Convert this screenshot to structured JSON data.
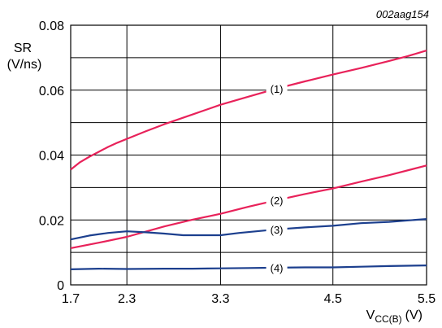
{
  "chart_data": {
    "type": "line",
    "code": "002aag154",
    "ylabel_line1": "SR",
    "ylabel_line2": "(V/ns)",
    "xlabel_main": "V",
    "xlabel_sub": "CC(B)",
    "xlabel_unit": "(V)",
    "xlim": [
      1.7,
      5.5
    ],
    "ylim": [
      0,
      0.08
    ],
    "x_ticks": [
      {
        "value": 1.7,
        "label": "1.7"
      },
      {
        "value": 2.3,
        "label": "2.3"
      },
      {
        "value": 3.3,
        "label": "3.3"
      },
      {
        "value": 4.5,
        "label": "4.5"
      },
      {
        "value": 5.5,
        "label": "5.5"
      }
    ],
    "y_ticks": [
      {
        "value": 0,
        "label": "0"
      },
      {
        "value": 0.02,
        "label": "0.02"
      },
      {
        "value": 0.04,
        "label": "0.04"
      },
      {
        "value": 0.06,
        "label": "0.06"
      },
      {
        "value": 0.08,
        "label": "0.08"
      }
    ],
    "x_grid": [
      2.3,
      3.3,
      4.5
    ],
    "y_grid": [
      0.01,
      0.02,
      0.03,
      0.04,
      0.05,
      0.06,
      0.07
    ],
    "series": [
      {
        "name": "(1)",
        "color": "#e8225a",
        "label_x": 3.9,
        "x": [
          1.7,
          1.8,
          1.9,
          2.0,
          2.1,
          2.2,
          2.3,
          2.5,
          2.7,
          3.0,
          3.3,
          3.6,
          3.9,
          4.2,
          4.5,
          4.8,
          5.1,
          5.3,
          5.5
        ],
        "y": [
          0.0355,
          0.0378,
          0.0395,
          0.041,
          0.0425,
          0.0438,
          0.045,
          0.0473,
          0.0495,
          0.0525,
          0.0555,
          0.058,
          0.0605,
          0.0627,
          0.0648,
          0.0668,
          0.069,
          0.0705,
          0.0722
        ]
      },
      {
        "name": "(2)",
        "color": "#e8225a",
        "label_x": 3.9,
        "x": [
          1.7,
          2.0,
          2.3,
          2.7,
          3.0,
          3.3,
          3.6,
          3.9,
          4.2,
          4.5,
          4.8,
          5.1,
          5.5
        ],
        "y": [
          0.0113,
          0.013,
          0.0148,
          0.018,
          0.0201,
          0.0219,
          0.0241,
          0.0261,
          0.028,
          0.0297,
          0.0318,
          0.0338,
          0.0368
        ]
      },
      {
        "name": "(3)",
        "color": "#1c3f8e",
        "label_x": 3.9,
        "x": [
          1.7,
          1.9,
          2.1,
          2.3,
          2.5,
          2.7,
          2.9,
          3.1,
          3.3,
          3.5,
          3.9,
          4.2,
          4.5,
          4.8,
          5.1,
          5.5
        ],
        "y": [
          0.014,
          0.0152,
          0.016,
          0.0165,
          0.0162,
          0.0158,
          0.0153,
          0.0153,
          0.0153,
          0.016,
          0.0171,
          0.0177,
          0.0182,
          0.019,
          0.0194,
          0.0203
        ]
      },
      {
        "name": "(4)",
        "color": "#1c3f8e",
        "label_x": 3.9,
        "x": [
          1.7,
          2.0,
          2.3,
          2.7,
          3.0,
          3.3,
          3.6,
          3.9,
          4.2,
          4.5,
          4.8,
          5.1,
          5.5
        ],
        "y": [
          0.0048,
          0.005,
          0.0049,
          0.005,
          0.005,
          0.0051,
          0.0052,
          0.0053,
          0.0054,
          0.0054,
          0.0056,
          0.0058,
          0.006
        ]
      }
    ]
  }
}
